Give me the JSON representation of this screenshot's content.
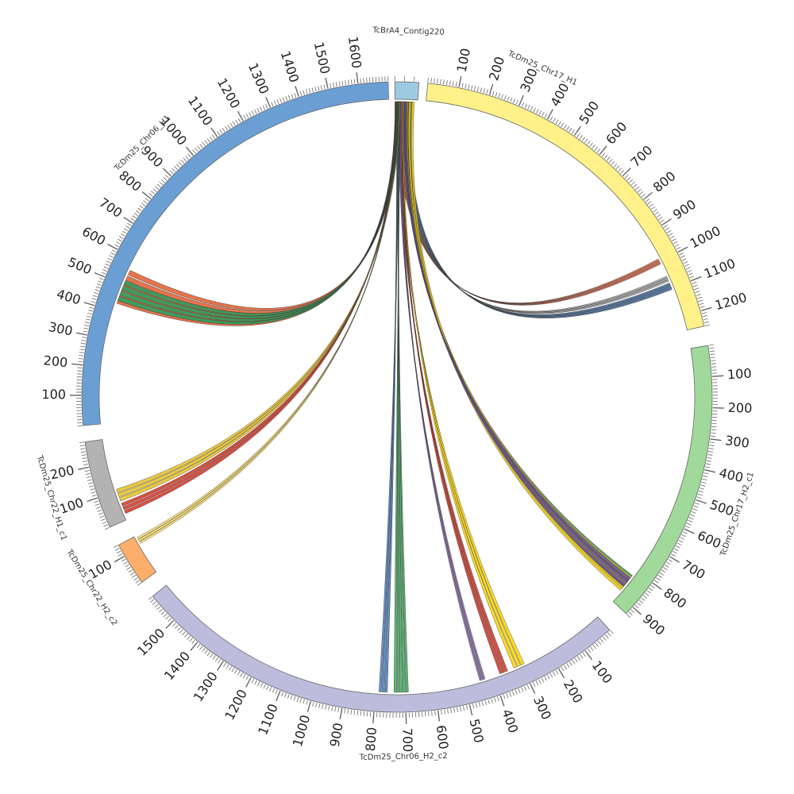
{
  "chart_data": {
    "type": "circos",
    "title": "",
    "segments": [
      {
        "id": "contig",
        "name": "TcBrA4_Contig220",
        "length": 25,
        "color": "#9ecae1",
        "ticks": [],
        "label_offset": 0
      },
      {
        "id": "chr17h1",
        "name": "TcDm25_Chr17_H1",
        "length": 1250,
        "color": "#fff18a",
        "ticks": [
          100,
          200,
          300,
          400,
          500,
          600,
          700,
          800,
          900,
          1000,
          1100,
          1200
        ],
        "label_offset": 320
      },
      {
        "id": "chr17h2",
        "name": "TcDm25_Chr17_H2_c1",
        "length": 930,
        "color": "#a1d99b",
        "ticks": [
          100,
          200,
          300,
          400,
          500,
          600,
          700,
          800,
          900
        ],
        "label_offset": 500
      },
      {
        "id": "chr06h2",
        "name": "TcDm25_Chr06_H2_c2",
        "length": 1600,
        "color": "#bcbddc",
        "ticks": [
          100,
          200,
          300,
          400,
          500,
          600,
          700,
          800,
          900,
          1000,
          1100,
          1200,
          1300,
          1400,
          1500
        ],
        "label_offset": 710
      },
      {
        "id": "chr22h2",
        "name": "TcDm25_Chr22_H2_c2",
        "length": 140,
        "color": "#fdae6b",
        "ticks": [
          100
        ],
        "label_offset": 70
      },
      {
        "id": "chr22h1",
        "name": "TcDm25_Chr22_H1_c1",
        "length": 280,
        "color": "#b3b3b3",
        "ticks": [
          100,
          200
        ],
        "label_offset": 140
      },
      {
        "id": "chr06h1",
        "name": "TcDm25_Chr06_H1",
        "length": 1700,
        "color": "#6b9fd4",
        "ticks": [
          100,
          200,
          300,
          400,
          500,
          600,
          700,
          800,
          900,
          1000,
          1100,
          1200,
          1300,
          1400,
          1500,
          1600
        ],
        "label_offset": 910
      }
    ],
    "links": [
      {
        "from": "contig",
        "fs": 1,
        "fe": 7,
        "to": "chr17h1",
        "ts": 990,
        "te": 1010,
        "color": "#f46d43",
        "count": 4
      },
      {
        "from": "contig",
        "fs": 7,
        "fe": 11,
        "to": "chr17h1",
        "ts": 1055,
        "te": 1075,
        "color": "#aaaaaa",
        "count": 3
      },
      {
        "from": "contig",
        "fs": 11,
        "fe": 18,
        "to": "chr17h1",
        "ts": 1080,
        "te": 1105,
        "color": "#3d6fa8",
        "count": 4
      },
      {
        "from": "contig",
        "fs": 10,
        "fe": 20,
        "to": "chr17h2",
        "ts": 820,
        "te": 880,
        "color": "#2a9d5c",
        "count": 6
      },
      {
        "from": "contig",
        "fs": 12,
        "fe": 22,
        "to": "chr17h2",
        "ts": 825,
        "te": 890,
        "color": "#e8c21c",
        "count": 3
      },
      {
        "from": "contig",
        "fs": 9,
        "fe": 14,
        "to": "chr17h2",
        "ts": 830,
        "te": 870,
        "color": "#6a51a3",
        "count": 3
      },
      {
        "from": "contig",
        "fs": 6,
        "fe": 10,
        "to": "chr06h2",
        "ts": 290,
        "te": 330,
        "color": "#ffd700",
        "count": 3
      },
      {
        "from": "contig",
        "fs": 5,
        "fe": 9,
        "to": "chr06h2",
        "ts": 350,
        "te": 380,
        "color": "#d7301f",
        "count": 3
      },
      {
        "from": "contig",
        "fs": 4,
        "fe": 8,
        "to": "chr06h2",
        "ts": 430,
        "te": 450,
        "color": "#8c6bb1",
        "count": 3
      },
      {
        "from": "contig",
        "fs": 3,
        "fe": 6,
        "to": "chr06h2",
        "ts": 690,
        "te": 740,
        "color": "#41ab5d",
        "count": 5
      },
      {
        "from": "contig",
        "fs": 2,
        "fe": 5,
        "to": "chr06h2",
        "ts": 760,
        "te": 790,
        "color": "#4a7fc1",
        "count": 3
      },
      {
        "from": "contig",
        "fs": 1,
        "fe": 4,
        "to": "chr22h1",
        "ts": 20,
        "te": 60,
        "color": "#d7301f",
        "count": 3
      },
      {
        "from": "contig",
        "fs": 3,
        "fe": 6,
        "to": "chr22h1",
        "ts": 65,
        "te": 110,
        "color": "#e8c21c",
        "count": 3
      },
      {
        "from": "contig",
        "fs": 1,
        "fe": 3,
        "to": "chr22h2",
        "ts": 110,
        "te": 135,
        "color": "#ffe066",
        "count": 3
      },
      {
        "from": "contig",
        "fs": 0,
        "fe": 3,
        "to": "chr06h1",
        "ts": 430,
        "te": 560,
        "color": "#e05a2b",
        "count": 6
      },
      {
        "from": "contig",
        "fs": 2,
        "fe": 5,
        "to": "chr06h1",
        "ts": 440,
        "te": 520,
        "color": "#2a9d5c",
        "count": 4
      }
    ]
  }
}
